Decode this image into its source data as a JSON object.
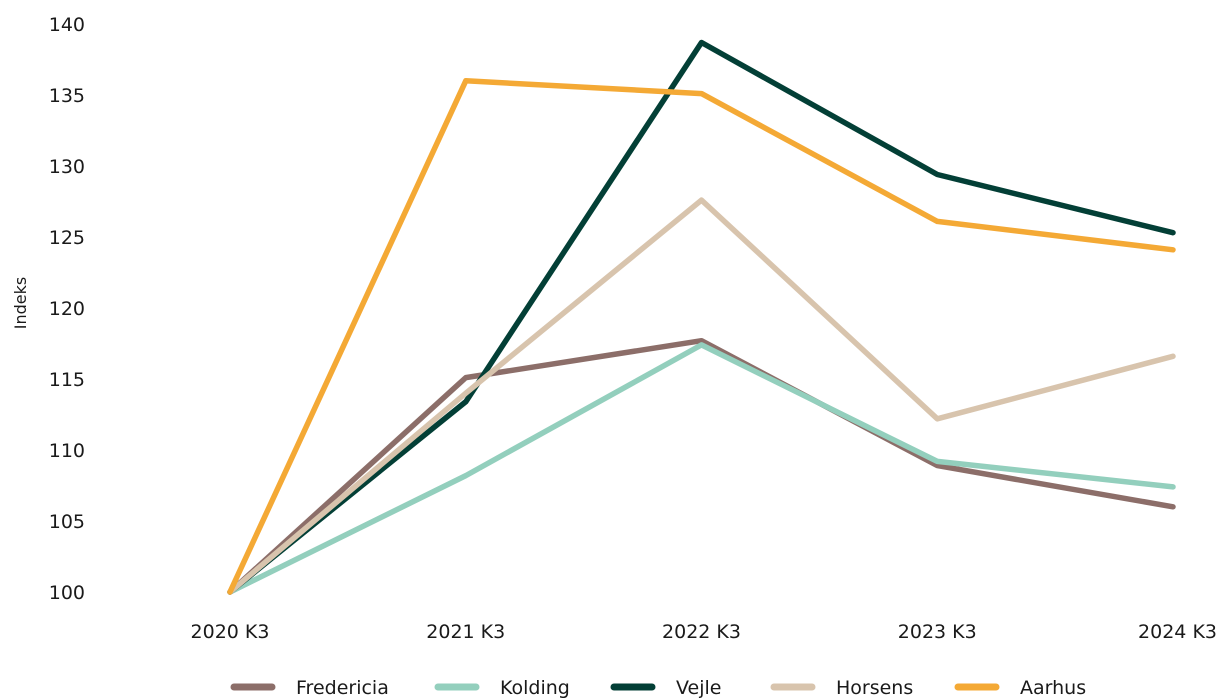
{
  "chart_data": {
    "type": "line",
    "title": "",
    "xlabel": "",
    "ylabel": "Indeks",
    "categories": [
      "2020 K3",
      "2021 K3",
      "2022 K3",
      "2023 K3",
      "2024 K3"
    ],
    "ylim": [
      100,
      140
    ],
    "yticks": [
      100,
      105,
      110,
      115,
      120,
      125,
      130,
      135,
      140
    ],
    "grid": false,
    "legend": "bottom",
    "series": [
      {
        "name": "Fredericia",
        "color": "#8c6e69",
        "values": [
          100,
          115.1,
          117.7,
          108.9,
          106.0
        ]
      },
      {
        "name": "Kolding",
        "color": "#93cfbd",
        "values": [
          100,
          108.2,
          117.4,
          109.2,
          107.4
        ]
      },
      {
        "name": "Vejle",
        "color": "#033f36",
        "values": [
          100,
          113.4,
          138.7,
          129.4,
          125.3
        ]
      },
      {
        "name": "Horsens",
        "color": "#d8c4ad",
        "values": [
          100,
          114.0,
          127.6,
          112.2,
          116.6
        ]
      },
      {
        "name": "Aarhus",
        "color": "#f4a935",
        "values": [
          100,
          136.0,
          135.1,
          126.1,
          124.1
        ]
      }
    ]
  }
}
